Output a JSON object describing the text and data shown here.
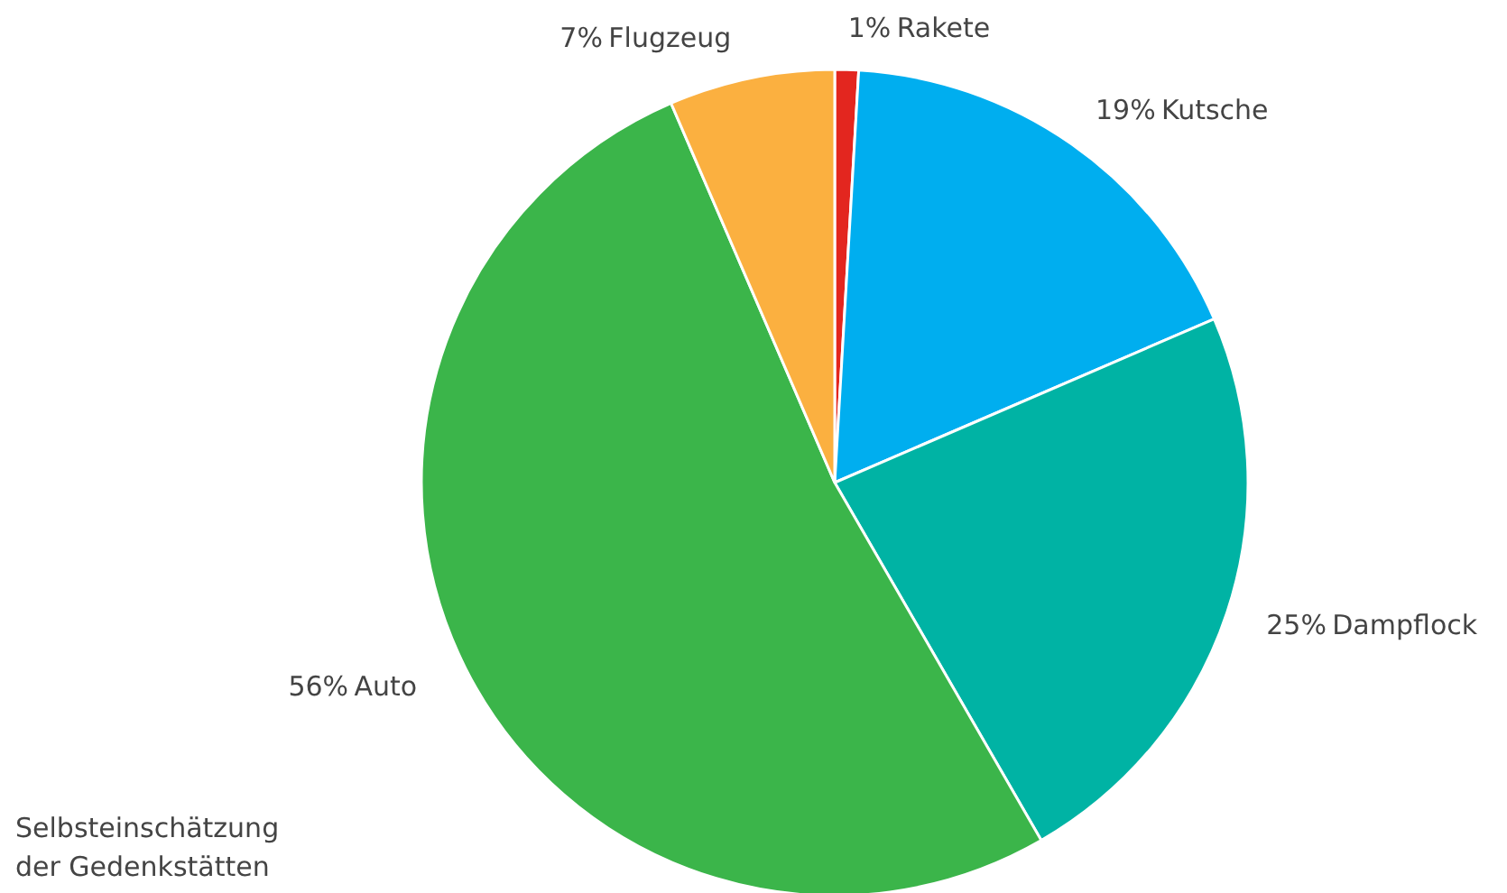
{
  "chart_data": {
    "type": "pie",
    "categories": [
      "Rakete",
      "Kutsche",
      "Dampflock",
      "Auto",
      "Flugzeug"
    ],
    "values": [
      1,
      19,
      25,
      56,
      7
    ],
    "colors": [
      "#e3261f",
      "#00aeef",
      "#00b3a4",
      "#3bb54a",
      "#fbb040"
    ],
    "value_labels": [
      "1%",
      "19%",
      "25%",
      "56%",
      "7%"
    ],
    "annotations": [
      "Selbsteinschätzung\nder Gedenkstätten"
    ]
  }
}
